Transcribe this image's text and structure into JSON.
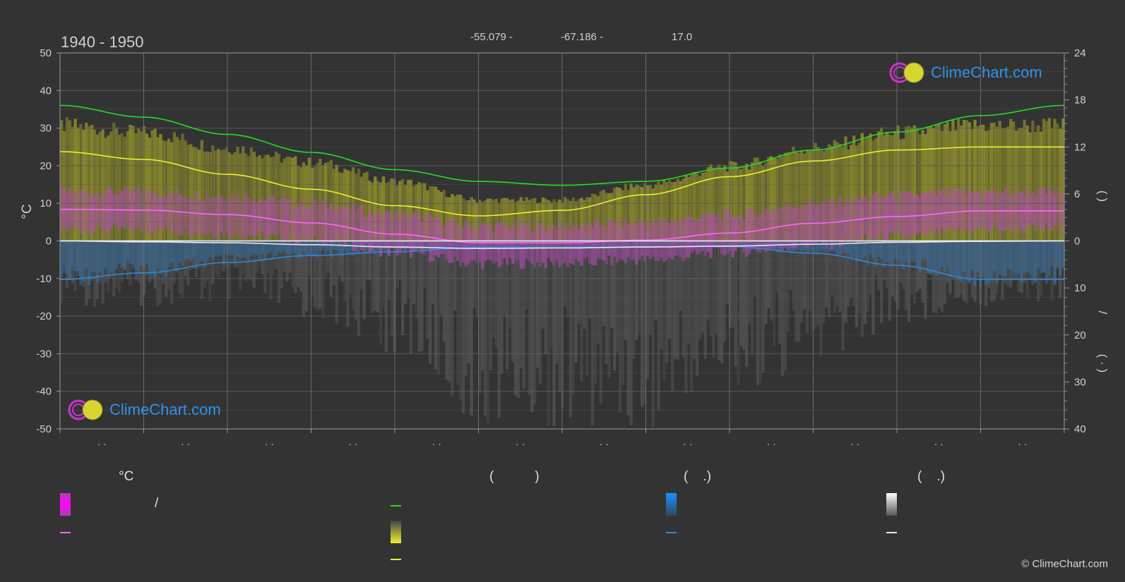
{
  "header": {
    "period": "1940 - 1950",
    "latitude": "-55.079 -",
    "longitude": "-67.186 -",
    "elevation": "17.0"
  },
  "axes": {
    "left_unit": "°C",
    "right_top_bracket": "(   )",
    "right_bottom_slash": "/",
    "right_bottom_bracket": "(  ·  )"
  },
  "month_label": "· ·",
  "legend": {
    "temp_header": "°C",
    "sun_header": "(           )",
    "rain_header": "(    .)",
    "snow_header": "(    .)",
    "temp_range_slash": "/"
  },
  "logos": {
    "text": "ClimeChart.com"
  },
  "copyright": "© ClimeChart.com",
  "colors": {
    "background": "#333333",
    "grid": "#5a5a5a",
    "daylight": "#22dd22",
    "sunshine": "#eeee33",
    "sunshine_band": "#9a9a2c",
    "temp_band": "#b44cb4",
    "temp_mean": "#ff66ff",
    "rain": "#2f88d8",
    "snow_line": "#e8e8e8",
    "precip_band": "#555555"
  },
  "chart_data": {
    "type": "line",
    "title": "1940 - 1950",
    "x": [
      0,
      1,
      2,
      3,
      4,
      5,
      6,
      7,
      8,
      9,
      10,
      11,
      12
    ],
    "left_axis": {
      "label": "°C",
      "ylim": [
        -50,
        50
      ],
      "ticks": [
        50,
        40,
        30,
        20,
        10,
        0,
        -10,
        -20,
        -30,
        -40,
        -50
      ]
    },
    "right_axis_top": {
      "ylim": [
        0,
        24
      ],
      "ticks": [
        24,
        18,
        12,
        6,
        0
      ]
    },
    "right_axis_bottom": {
      "ylim": [
        0,
        40
      ],
      "ticks": [
        0,
        10,
        20,
        30,
        40
      ]
    },
    "grid": true,
    "series": [
      {
        "key": "daylight_hours",
        "axis": "right_top",
        "values": [
          17.3,
          15.8,
          13.6,
          11.3,
          9.1,
          7.6,
          7.1,
          7.6,
          9.3,
          11.6,
          13.9,
          16.0,
          17.3
        ]
      },
      {
        "key": "sunshine_hours",
        "axis": "right_top",
        "values": [
          11.4,
          10.4,
          8.5,
          6.6,
          4.5,
          3.2,
          3.9,
          5.9,
          8.2,
          10.2,
          11.6,
          12.0,
          12.0
        ]
      },
      {
        "key": "mean_temp",
        "axis": "left",
        "values": [
          8.4,
          8.2,
          7.0,
          4.8,
          1.8,
          -0.5,
          -0.5,
          0.2,
          2.1,
          4.7,
          6.5,
          8.0,
          8.0
        ]
      },
      {
        "key": "rain_mm",
        "axis": "right_bottom",
        "values": [
          8.2,
          6.8,
          4.6,
          3.1,
          2.3,
          1.4,
          1.4,
          1.2,
          1.2,
          2.6,
          5.2,
          8.2,
          8.2
        ]
      },
      {
        "key": "snow_mm",
        "axis": "right_bottom",
        "values": [
          0.0,
          0.2,
          0.4,
          0.8,
          1.3,
          1.6,
          1.5,
          1.3,
          1.1,
          0.7,
          0.3,
          0.1,
          0.0
        ]
      }
    ],
    "bands": {
      "sunshine_range_top": [
        15.5,
        14.5,
        12.5,
        10.5,
        8.0,
        5.5,
        5.5,
        7.5,
        10.0,
        12.5,
        14.5,
        15.5,
        15.5
      ],
      "temp_range_top": [
        13,
        13,
        12,
        10,
        7,
        4,
        4,
        5,
        7,
        10,
        12,
        13,
        13
      ],
      "temp_range_bottom": [
        3,
        3,
        2,
        0,
        -3,
        -6,
        -6,
        -5,
        -3,
        -1,
        1,
        3,
        3
      ],
      "precip_max_mm": [
        14,
        14,
        14,
        17,
        24,
        40,
        40,
        40,
        32,
        28,
        18,
        14,
        14
      ]
    }
  }
}
